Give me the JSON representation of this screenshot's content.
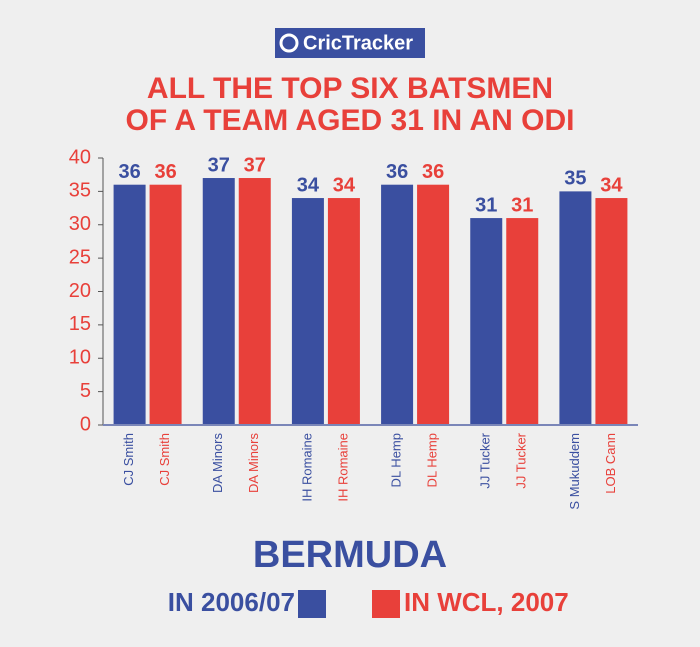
{
  "brand": "CricTracker",
  "chart_data": {
    "type": "bar",
    "title_lines": [
      "ALL THE TOP SIX BATSMEN",
      "OF A TEAM AGED 31 IN AN ODI"
    ],
    "team": "BERMUDA",
    "categories": [
      null,
      null,
      null,
      null,
      null,
      null
    ],
    "series": [
      {
        "name": "IN 2006/07",
        "color": "#3a4fa0",
        "labels": [
          "CJ Smith",
          "DA Minors",
          "IH Romaine",
          "DL Hemp",
          "JJ Tucker",
          "S Mukuddem"
        ],
        "values": [
          36,
          37,
          34,
          36,
          31,
          35
        ]
      },
      {
        "name": "IN WCL, 2007",
        "color": "#e8403a",
        "labels": [
          "CJ Smith",
          "DA Minors",
          "IH Romaine",
          "DL Hemp",
          "JJ Tucker",
          "LOB Cann"
        ],
        "values": [
          36,
          37,
          34,
          36,
          31,
          34
        ]
      }
    ],
    "ylim": [
      0,
      40
    ],
    "yticks": [
      0,
      5,
      10,
      15,
      20,
      25,
      30,
      35,
      40
    ],
    "grid": false
  }
}
